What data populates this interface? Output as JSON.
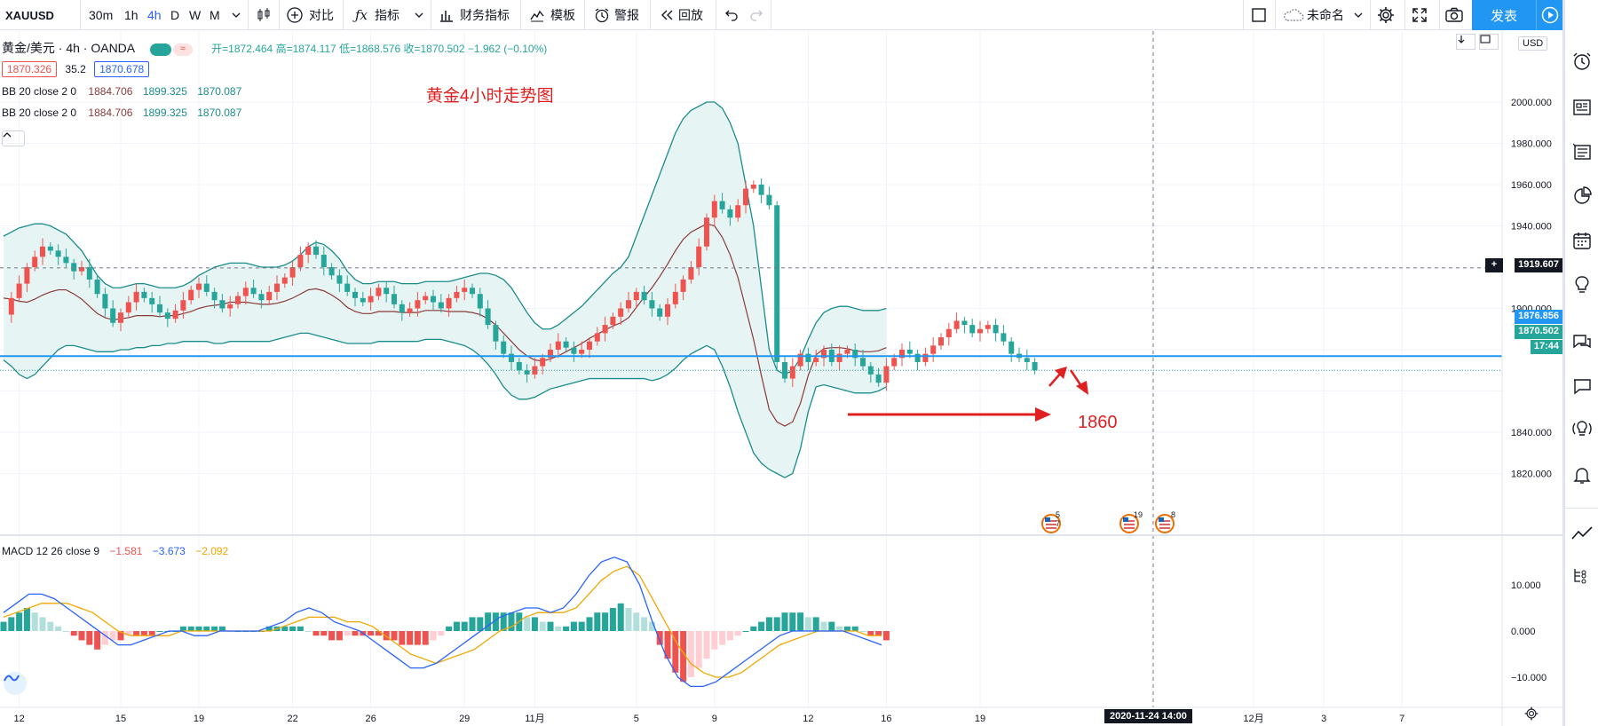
{
  "toolbar": {
    "symbol": "XAUUSD",
    "intervals": [
      "30m",
      "1h",
      "4h",
      "D",
      "W",
      "M"
    ],
    "active_interval": "4h",
    "compare_label": "对比",
    "indicators_label": "指标",
    "financials_label": "财务指标",
    "templates_label": "模板",
    "alert_label": "警报",
    "replay_label": "回放",
    "layout_name": "未命名",
    "publish_label": "发表"
  },
  "legend": {
    "title": "黄金/美元 · 4h · OANDA",
    "ohlc": "开=1872.464  高=1874.117  低=1868.576  收=1870.502  −1.962 (−0.10%)",
    "bid": "1870.326",
    "spread": "35.2",
    "ask": "1870.678",
    "bb1": {
      "name": "BB 20 close 2 0",
      "v1": "1884.706",
      "v2": "1899.325",
      "v3": "1870.087"
    },
    "bb2": {
      "name": "BB 20 close 2 0",
      "v1": "1884.706",
      "v2": "1899.325",
      "v3": "1870.087"
    },
    "macd": {
      "name": "MACD 12 26 close 9",
      "v1": "−1.581",
      "v2": "−3.673",
      "v3": "−2.092"
    }
  },
  "currency": "USD",
  "annotations": {
    "title": "黄金4小时走势图",
    "target": "1860"
  },
  "price_tags": {
    "crosshair": "1919.607",
    "line": "1876.856",
    "last": "1870.502",
    "countdown": "17:44"
  },
  "crosshair_date": "2020-11-24   14:00",
  "event_badges": [
    "5 7",
    "19",
    "8"
  ],
  "colors": {
    "up": "#ef5350",
    "down": "#26a69a",
    "bb": "#1a8c8c",
    "bb_fill": "#e6f4f3",
    "basis": "#8b3a3a",
    "hline": "#2196f3",
    "accent": "#2962ff",
    "annotation": "#e02020",
    "macd_line": "#2962ff",
    "signal_line": "#f0a800"
  },
  "chart_data": {
    "type": "candlestick",
    "timeframe": "4h",
    "y_ticks": [
      2000,
      1980,
      1960,
      1940,
      1920,
      1900,
      1880,
      1860,
      1840,
      1820
    ],
    "y_tick_labels": [
      "2000.000",
      "1980.000",
      "1960.000",
      "1940.000",
      "",
      "1900.000",
      "",
      "",
      "1840.000",
      "1820.000"
    ],
    "ylim": [
      1810,
      2010
    ],
    "horizontal_line": 1876.856,
    "crosshair_price": 1919.607,
    "x_ticks": [
      {
        "label": "12",
        "i": 2
      },
      {
        "label": "15",
        "i": 15
      },
      {
        "label": "19",
        "i": 25
      },
      {
        "label": "22",
        "i": 37
      },
      {
        "label": "26",
        "i": 47
      },
      {
        "label": "29",
        "i": 59
      },
      {
        "label": "11月",
        "i": 68
      },
      {
        "label": "5",
        "i": 81
      },
      {
        "label": "9",
        "i": 91
      },
      {
        "label": "12",
        "i": 103
      },
      {
        "label": "16",
        "i": 113
      },
      {
        "label": "19",
        "i": 125
      },
      {
        "label": "26",
        "i": 147
      },
      {
        "label": "12月",
        "i": 160
      },
      {
        "label": "3",
        "i": 169
      },
      {
        "label": "7",
        "i": 179
      }
    ],
    "close": [
      1897,
      1905,
      1912,
      1920,
      1925,
      1930,
      1928,
      1925,
      1922,
      1918,
      1920,
      1914,
      1907,
      1900,
      1893,
      1898,
      1903,
      1908,
      1905,
      1902,
      1898,
      1895,
      1899,
      1904,
      1909,
      1912,
      1908,
      1904,
      1900,
      1902,
      1906,
      1910,
      1907,
      1904,
      1908,
      1912,
      1915,
      1920,
      1926,
      1930,
      1926,
      1920,
      1916,
      1912,
      1908,
      1905,
      1903,
      1906,
      1910,
      1907,
      1902,
      1898,
      1900,
      1904,
      1906,
      1903,
      1900,
      1905,
      1908,
      1910,
      1907,
      1900,
      1892,
      1884,
      1878,
      1874,
      1870,
      1868,
      1872,
      1876,
      1880,
      1884,
      1881,
      1878,
      1880,
      1884,
      1888,
      1892,
      1896,
      1900,
      1904,
      1908,
      1904,
      1900,
      1896,
      1902,
      1908,
      1914,
      1920,
      1930,
      1944,
      1952,
      1948,
      1944,
      1950,
      1958,
      1960,
      1955,
      1950,
      1874,
      1866,
      1872,
      1878,
      1874,
      1876,
      1880,
      1874,
      1878,
      1880,
      1876,
      1872,
      1868,
      1864,
      1872,
      1876,
      1880,
      1878,
      1874,
      1878,
      1882,
      1886,
      1890,
      1894,
      1892,
      1888,
      1890,
      1892,
      1888,
      1884,
      1878,
      1876,
      1874,
      1870
    ],
    "bb_upper": [
      1935,
      1937,
      1939,
      1940,
      1941,
      1941,
      1940,
      1938,
      1936,
      1932,
      1928,
      1922,
      1916,
      1912,
      1910,
      1910,
      1911,
      1912,
      1912,
      1911,
      1910,
      1910,
      1910,
      1911,
      1913,
      1916,
      1918,
      1920,
      1921,
      1922,
      1922,
      1922,
      1921,
      1920,
      1920,
      1920,
      1921,
      1923,
      1926,
      1930,
      1932,
      1931,
      1928,
      1924,
      1918,
      1914,
      1912,
      1912,
      1913,
      1913,
      1913,
      1912,
      1912,
      1912,
      1913,
      1913,
      1913,
      1913,
      1914,
      1915,
      1916,
      1917,
      1917,
      1916,
      1914,
      1910,
      1904,
      1898,
      1893,
      1890,
      1890,
      1892,
      1895,
      1898,
      1901,
      1905,
      1909,
      1913,
      1917,
      1920,
      1925,
      1935,
      1945,
      1955,
      1965,
      1975,
      1985,
      1992,
      1996,
      1998,
      2000,
      2000,
      1997,
      1990,
      1980,
      1960,
      1940,
      1910,
      1880,
      1870,
      1868,
      1870,
      1876,
      1885,
      1893,
      1898,
      1900,
      1901,
      1901,
      1900,
      1899,
      1899,
      1899,
      1900
    ],
    "bb_lower": [
      1875,
      1872,
      1868,
      1866,
      1868,
      1872,
      1876,
      1880,
      1882,
      1882,
      1881,
      1880,
      1879,
      1879,
      1879,
      1880,
      1880,
      1881,
      1881,
      1882,
      1882,
      1883,
      1883,
      1884,
      1884,
      1884,
      1884,
      1883,
      1883,
      1884,
      1884,
      1884,
      1884,
      1884,
      1884,
      1885,
      1886,
      1887,
      1888,
      1888,
      1887,
      1886,
      1885,
      1884,
      1883,
      1883,
      1883,
      1883,
      1884,
      1884,
      1884,
      1884,
      1884,
      1884,
      1885,
      1885,
      1885,
      1884,
      1883,
      1882,
      1880,
      1877,
      1873,
      1868,
      1862,
      1858,
      1856,
      1856,
      1857,
      1859,
      1861,
      1862,
      1863,
      1864,
      1865,
      1866,
      1866,
      1866,
      1866,
      1866,
      1866,
      1866,
      1866,
      1865,
      1866,
      1868,
      1871,
      1875,
      1878,
      1880,
      1882,
      1880,
      1872,
      1862,
      1850,
      1840,
      1830,
      1825,
      1822,
      1820,
      1818,
      1820,
      1832,
      1850,
      1862,
      1863,
      1862,
      1861,
      1860,
      1859,
      1859,
      1859,
      1860,
      1862,
      1866,
      1868,
      1870,
      1870,
      1870,
      1870
    ],
    "macd": {
      "y_ticks": [
        10,
        0,
        -10
      ],
      "ylim": [
        -13,
        17
      ],
      "hist": [
        2,
        3,
        4,
        5,
        4,
        3,
        2,
        1,
        0,
        -1,
        -2,
        -3,
        -4,
        -3,
        -2,
        -2,
        -1,
        -1,
        -1,
        -1,
        0,
        0,
        0,
        1,
        1,
        1,
        1,
        1,
        1,
        0,
        0,
        0,
        0,
        0,
        1,
        1,
        1,
        1,
        1,
        0,
        -1,
        -1,
        -2,
        -2,
        -1,
        -1,
        -1,
        -1,
        -1,
        -2,
        -2,
        -3,
        -3,
        -3,
        -3,
        -2,
        -1,
        1,
        2,
        2,
        3,
        3,
        4,
        4,
        4,
        4,
        4,
        3,
        3,
        2,
        2,
        1,
        1,
        2,
        2,
        3,
        4,
        4,
        5,
        6,
        5,
        4,
        3,
        2,
        -3,
        -6,
        -9,
        -11,
        -10,
        -8,
        -6,
        -4,
        -3,
        -2,
        -1,
        0,
        1,
        2,
        3,
        3,
        4,
        4,
        4,
        3,
        3,
        2,
        2,
        1,
        1,
        1,
        0,
        -1,
        -1,
        -2
      ],
      "macd": [
        4,
        6,
        8,
        8,
        7,
        5,
        3,
        1,
        -1,
        -3,
        -3,
        -2,
        -1,
        0,
        0,
        -1,
        -1,
        0,
        0,
        0,
        0,
        1,
        2,
        4,
        5,
        4,
        2,
        1,
        0,
        -2,
        -4,
        -6,
        -8,
        -8,
        -7,
        -5,
        -3,
        -1,
        1,
        3,
        4,
        5,
        5,
        4,
        5,
        8,
        12,
        15,
        16,
        15,
        10,
        2,
        -5,
        -10,
        -12,
        -12,
        -11,
        -9,
        -7,
        -5,
        -3,
        -1,
        0,
        0,
        0,
        0,
        0,
        -1,
        -2,
        -3
      ],
      "signal": [
        3,
        4,
        5,
        6,
        6,
        6,
        5,
        4,
        2,
        0,
        -1,
        -1,
        -1,
        -1,
        0,
        0,
        0,
        0,
        0,
        0,
        0,
        0,
        1,
        2,
        3,
        3,
        3,
        2,
        2,
        1,
        -1,
        -3,
        -5,
        -6,
        -7,
        -6,
        -5,
        -4,
        -2,
        0,
        1,
        3,
        4,
        4,
        4,
        5,
        8,
        11,
        13,
        14,
        12,
        7,
        2,
        -3,
        -7,
        -9,
        -10,
        -10,
        -9,
        -7,
        -5,
        -3,
        -2,
        -1,
        0,
        0,
        0,
        0,
        -1,
        -1
      ]
    }
  }
}
